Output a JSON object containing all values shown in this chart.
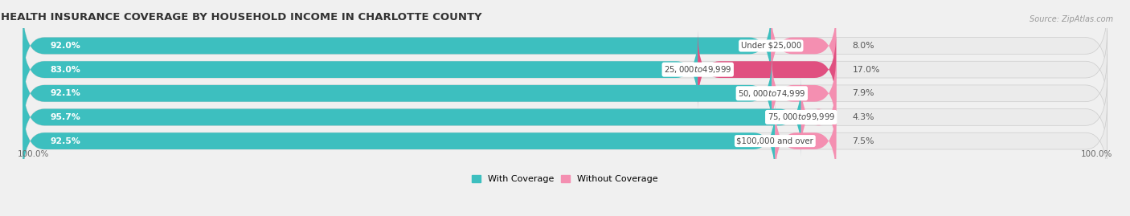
{
  "title": "HEALTH INSURANCE COVERAGE BY HOUSEHOLD INCOME IN CHARLOTTE COUNTY",
  "source": "Source: ZipAtlas.com",
  "categories": [
    "Under $25,000",
    "$25,000 to $49,999",
    "$50,000 to $74,999",
    "$75,000 to $99,999",
    "$100,000 and over"
  ],
  "with_coverage": [
    92.0,
    83.0,
    92.1,
    95.7,
    92.5
  ],
  "without_coverage": [
    8.0,
    17.0,
    7.9,
    4.3,
    7.5
  ],
  "color_with": "#3DBFBF",
  "color_without": "#F48FB1",
  "color_without_83": "#E05080",
  "bg_color": "#F0F0F0",
  "bar_bg_color": "#E2E2E2",
  "row_bg_color": "#EBEBEB",
  "title_fontsize": 9.5,
  "label_fontsize": 7.8,
  "source_fontsize": 7.0,
  "axis_label_fontsize": 7.5,
  "legend_fontsize": 8.0,
  "figsize": [
    14.06,
    2.69
  ],
  "dpi": 100,
  "xlim_max": 120,
  "bar_scale": 0.75,
  "bar_height": 0.68
}
